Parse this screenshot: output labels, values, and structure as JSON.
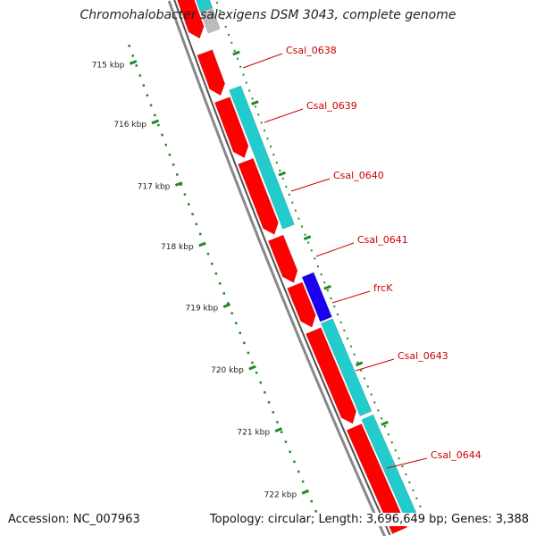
{
  "title": "Chromohalobacter salexigens DSM 3043, complete genome",
  "footer": {
    "accession": "Accession: NC_007963",
    "summary": "Topology: circular; Length: 3,696,649 bp; Genes: 3,388"
  },
  "colors": {
    "forward_cds": "#ff0000",
    "reverse_cds": "#22cccc",
    "frc_highlight": "#1a00ee",
    "other_feature": "#bbbbbb",
    "backbone": "#888888",
    "tick": "#228822",
    "gene_label": "#cc0000"
  },
  "ruler_ticks": [
    "715 kbp",
    "716 kbp",
    "717 kbp",
    "718 kbp",
    "719 kbp",
    "720 kbp",
    "721 kbp",
    "722 kbp"
  ],
  "gene_labels": [
    "Csal_0638",
    "Csal_0639",
    "Csal_0640",
    "Csal_0641",
    "frcK",
    "Csal_0643",
    "Csal_0644"
  ]
}
